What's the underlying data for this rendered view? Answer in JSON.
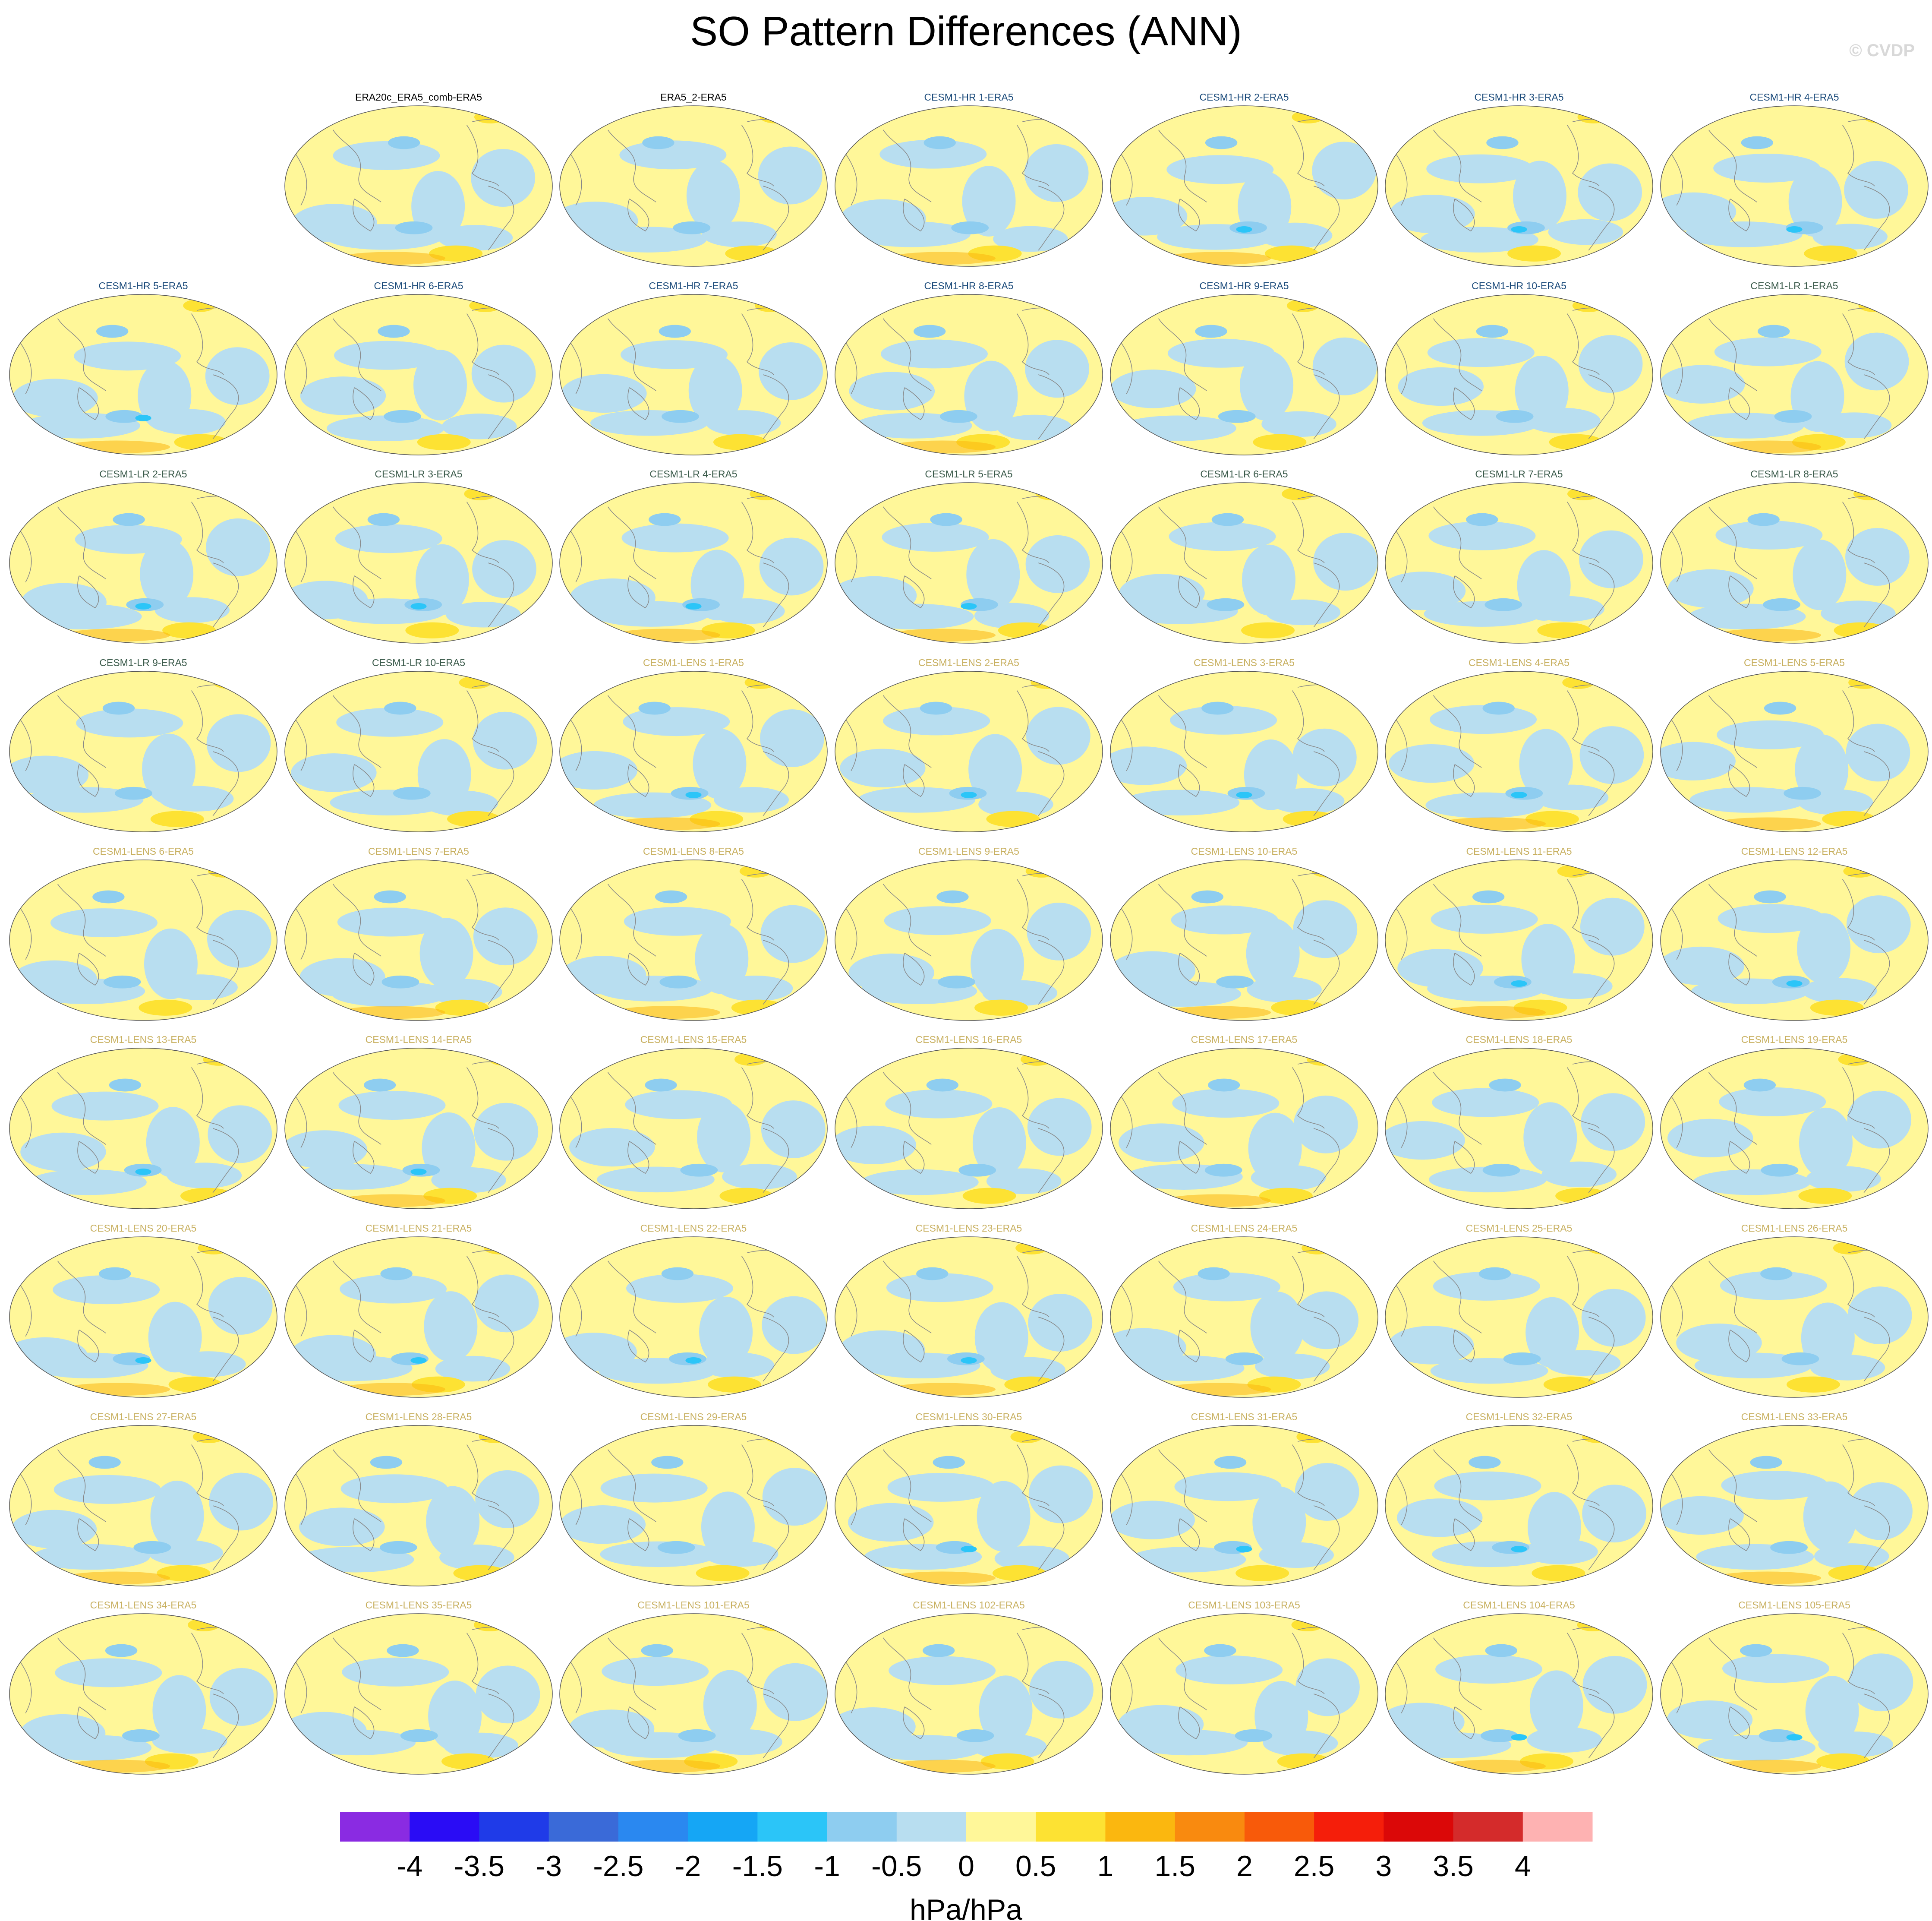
{
  "title": "SO Pattern Differences (ANN)",
  "credit": "© CVDP",
  "colorbar": {
    "units": "hPa/hPa",
    "tick_labels": [
      "-4",
      "-3.5",
      "-3",
      "-2.5",
      "-2",
      "-1.5",
      "-1",
      "-0.5",
      "0",
      "0.5",
      "1",
      "1.5",
      "2",
      "2.5",
      "3",
      "3.5",
      "4"
    ],
    "colors": [
      "#8a2be2",
      "#2a0cf5",
      "#1f3be8",
      "#3a6ad8",
      "#2a88f0",
      "#15a6f5",
      "#2bc5f8",
      "#8ecdf0",
      "#b8def0",
      "#fff799",
      "#fde233",
      "#fbb70f",
      "#f98a0f",
      "#f85a0a",
      "#f51e0a",
      "#db0808",
      "#d42b2b",
      "#feb2b2"
    ]
  },
  "chart_data": {
    "type": "heatmap",
    "description_of_grid": "9 rows x 7 columns of global map panels showing SO pattern difference vs ERA5",
    "panels": [
      {
        "row": 0,
        "col": 1,
        "label": "ERA20c_ERA5_comb-ERA5",
        "group": "obs"
      },
      {
        "row": 0,
        "col": 2,
        "label": "ERA5_2-ERA5",
        "group": "obs"
      },
      {
        "row": 0,
        "col": 3,
        "label": "CESM1-HR 1-ERA5",
        "group": "hr"
      },
      {
        "row": 0,
        "col": 4,
        "label": "CESM1-HR 2-ERA5",
        "group": "hr"
      },
      {
        "row": 0,
        "col": 5,
        "label": "CESM1-HR 3-ERA5",
        "group": "hr"
      },
      {
        "row": 0,
        "col": 6,
        "label": "CESM1-HR 4-ERA5",
        "group": "hr"
      },
      {
        "row": 1,
        "col": 0,
        "label": "CESM1-HR 5-ERA5",
        "group": "hr"
      },
      {
        "row": 1,
        "col": 1,
        "label": "CESM1-HR 6-ERA5",
        "group": "hr"
      },
      {
        "row": 1,
        "col": 2,
        "label": "CESM1-HR 7-ERA5",
        "group": "hr"
      },
      {
        "row": 1,
        "col": 3,
        "label": "CESM1-HR 8-ERA5",
        "group": "hr"
      },
      {
        "row": 1,
        "col": 4,
        "label": "CESM1-HR 9-ERA5",
        "group": "hr"
      },
      {
        "row": 1,
        "col": 5,
        "label": "CESM1-HR 10-ERA5",
        "group": "hr"
      },
      {
        "row": 1,
        "col": 6,
        "label": "CESM1-LR 1-ERA5",
        "group": "lr"
      },
      {
        "row": 2,
        "col": 0,
        "label": "CESM1-LR 2-ERA5",
        "group": "lr"
      },
      {
        "row": 2,
        "col": 1,
        "label": "CESM1-LR 3-ERA5",
        "group": "lr"
      },
      {
        "row": 2,
        "col": 2,
        "label": "CESM1-LR 4-ERA5",
        "group": "lr"
      },
      {
        "row": 2,
        "col": 3,
        "label": "CESM1-LR 5-ERA5",
        "group": "lr"
      },
      {
        "row": 2,
        "col": 4,
        "label": "CESM1-LR 6-ERA5",
        "group": "lr"
      },
      {
        "row": 2,
        "col": 5,
        "label": "CESM1-LR 7-ERA5",
        "group": "lr"
      },
      {
        "row": 2,
        "col": 6,
        "label": "CESM1-LR 8-ERA5",
        "group": "lr"
      },
      {
        "row": 3,
        "col": 0,
        "label": "CESM1-LR 9-ERA5",
        "group": "lr"
      },
      {
        "row": 3,
        "col": 1,
        "label": "CESM1-LR 10-ERA5",
        "group": "lr"
      },
      {
        "row": 3,
        "col": 2,
        "label": "CESM1-LENS 1-ERA5",
        "group": "lens"
      },
      {
        "row": 3,
        "col": 3,
        "label": "CESM1-LENS 2-ERA5",
        "group": "lens"
      },
      {
        "row": 3,
        "col": 4,
        "label": "CESM1-LENS 3-ERA5",
        "group": "lens"
      },
      {
        "row": 3,
        "col": 5,
        "label": "CESM1-LENS 4-ERA5",
        "group": "lens"
      },
      {
        "row": 3,
        "col": 6,
        "label": "CESM1-LENS 5-ERA5",
        "group": "lens"
      },
      {
        "row": 4,
        "col": 0,
        "label": "CESM1-LENS 6-ERA5",
        "group": "lens"
      },
      {
        "row": 4,
        "col": 1,
        "label": "CESM1-LENS 7-ERA5",
        "group": "lens"
      },
      {
        "row": 4,
        "col": 2,
        "label": "CESM1-LENS 8-ERA5",
        "group": "lens"
      },
      {
        "row": 4,
        "col": 3,
        "label": "CESM1-LENS 9-ERA5",
        "group": "lens"
      },
      {
        "row": 4,
        "col": 4,
        "label": "CESM1-LENS 10-ERA5",
        "group": "lens"
      },
      {
        "row": 4,
        "col": 5,
        "label": "CESM1-LENS 11-ERA5",
        "group": "lens"
      },
      {
        "row": 4,
        "col": 6,
        "label": "CESM1-LENS 12-ERA5",
        "group": "lens"
      },
      {
        "row": 5,
        "col": 0,
        "label": "CESM1-LENS 13-ERA5",
        "group": "lens"
      },
      {
        "row": 5,
        "col": 1,
        "label": "CESM1-LENS 14-ERA5",
        "group": "lens"
      },
      {
        "row": 5,
        "col": 2,
        "label": "CESM1-LENS 15-ERA5",
        "group": "lens"
      },
      {
        "row": 5,
        "col": 3,
        "label": "CESM1-LENS 16-ERA5",
        "group": "lens"
      },
      {
        "row": 5,
        "col": 4,
        "label": "CESM1-LENS 17-ERA5",
        "group": "lens"
      },
      {
        "row": 5,
        "col": 5,
        "label": "CESM1-LENS 18-ERA5",
        "group": "lens"
      },
      {
        "row": 5,
        "col": 6,
        "label": "CESM1-LENS 19-ERA5",
        "group": "lens"
      },
      {
        "row": 6,
        "col": 0,
        "label": "CESM1-LENS 20-ERA5",
        "group": "lens"
      },
      {
        "row": 6,
        "col": 1,
        "label": "CESM1-LENS 21-ERA5",
        "group": "lens"
      },
      {
        "row": 6,
        "col": 2,
        "label": "CESM1-LENS 22-ERA5",
        "group": "lens"
      },
      {
        "row": 6,
        "col": 3,
        "label": "CESM1-LENS 23-ERA5",
        "group": "lens"
      },
      {
        "row": 6,
        "col": 4,
        "label": "CESM1-LENS 24-ERA5",
        "group": "lens"
      },
      {
        "row": 6,
        "col": 5,
        "label": "CESM1-LENS 25-ERA5",
        "group": "lens"
      },
      {
        "row": 6,
        "col": 6,
        "label": "CESM1-LENS 26-ERA5",
        "group": "lens"
      },
      {
        "row": 7,
        "col": 0,
        "label": "CESM1-LENS 27-ERA5",
        "group": "lens"
      },
      {
        "row": 7,
        "col": 1,
        "label": "CESM1-LENS 28-ERA5",
        "group": "lens"
      },
      {
        "row": 7,
        "col": 2,
        "label": "CESM1-LENS 29-ERA5",
        "group": "lens"
      },
      {
        "row": 7,
        "col": 3,
        "label": "CESM1-LENS 30-ERA5",
        "group": "lens"
      },
      {
        "row": 7,
        "col": 4,
        "label": "CESM1-LENS 31-ERA5",
        "group": "lens"
      },
      {
        "row": 7,
        "col": 5,
        "label": "CESM1-LENS 32-ERA5",
        "group": "lens"
      },
      {
        "row": 7,
        "col": 6,
        "label": "CESM1-LENS 33-ERA5",
        "group": "lens"
      },
      {
        "row": 8,
        "col": 0,
        "label": "CESM1-LENS 34-ERA5",
        "group": "lens"
      },
      {
        "row": 8,
        "col": 1,
        "label": "CESM1-LENS 35-ERA5",
        "group": "lens"
      },
      {
        "row": 8,
        "col": 2,
        "label": "CESM1-LENS 101-ERA5",
        "group": "lens"
      },
      {
        "row": 8,
        "col": 3,
        "label": "CESM1-LENS 102-ERA5",
        "group": "lens"
      },
      {
        "row": 8,
        "col": 4,
        "label": "CESM1-LENS 103-ERA5",
        "group": "lens"
      },
      {
        "row": 8,
        "col": 5,
        "label": "CESM1-LENS 104-ERA5",
        "group": "lens"
      },
      {
        "row": 8,
        "col": 6,
        "label": "CESM1-LENS 105-ERA5",
        "group": "lens"
      }
    ],
    "group_title_colors": {
      "obs": "#000000",
      "hr": "#1a4a7a",
      "lr": "#3a5a4a",
      "lens": "#c8b060"
    }
  }
}
